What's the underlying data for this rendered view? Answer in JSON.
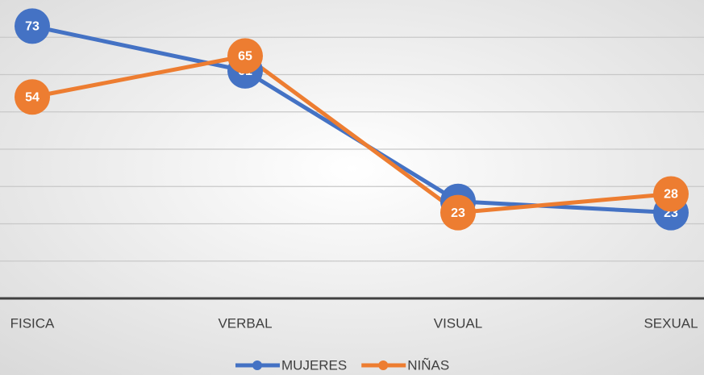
{
  "chart_data": {
    "type": "line",
    "categories": [
      "FISICA",
      "VERBAL",
      "VISUAL",
      "SEXUAL"
    ],
    "series": [
      {
        "name": "MUJERES",
        "color": "#4472c4",
        "values": [
          73,
          61,
          26,
          23
        ]
      },
      {
        "name": "NIÑAS",
        "color": "#ed7d31",
        "values": [
          54,
          65,
          23,
          28
        ]
      }
    ],
    "ylim": [
      0,
      80
    ],
    "yticks": [
      0,
      10,
      20,
      30,
      40,
      50,
      60,
      70
    ],
    "grid": true
  }
}
